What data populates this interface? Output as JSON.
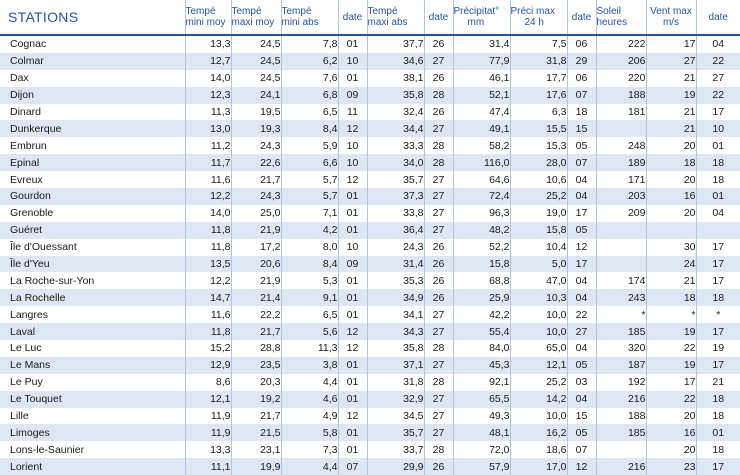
{
  "table": {
    "headers": {
      "station": "STATIONS",
      "tmoy": [
        "Tempé",
        "mini moy"
      ],
      "tmax": [
        "Tempé",
        "maxi moy"
      ],
      "tabs": [
        "Tempé",
        "mini abs"
      ],
      "date1": "date",
      "tmaxabs": [
        "Tempé",
        "maxi abs"
      ],
      "date2": "date",
      "precip": [
        "Précipitat°",
        "mm"
      ],
      "pmax": [
        "Préci max",
        "24 h"
      ],
      "date3": "date",
      "sun": [
        "Soleil",
        "heures"
      ],
      "wind": [
        "Vent max",
        "m/s"
      ],
      "date4": "date"
    },
    "rows": [
      [
        "Cognac",
        "13,3",
        "24,5",
        "7,8",
        "01",
        "37,7",
        "26",
        "31,4",
        "7,5",
        "06",
        "222",
        "17",
        "04"
      ],
      [
        "Colmar",
        "12,7",
        "24,5",
        "6,2",
        "10",
        "34,6",
        "27",
        "77,9",
        "31,8",
        "29",
        "206",
        "27",
        "22"
      ],
      [
        "Dax",
        "14,0",
        "24,5",
        "7,6",
        "01",
        "38,1",
        "26",
        "46,1",
        "17,7",
        "06",
        "220",
        "21",
        "27"
      ],
      [
        "Dijon",
        "12,3",
        "24,1",
        "6,8",
        "09",
        "35,8",
        "28",
        "52,1",
        "17,6",
        "07",
        "188",
        "19",
        "22"
      ],
      [
        "Dinard",
        "11,3",
        "19,5",
        "6,5",
        "11",
        "32,4",
        "26",
        "47,4",
        "6,3",
        "18",
        "181",
        "21",
        "17"
      ],
      [
        "Dunkerque",
        "13,0",
        "19,3",
        "8,4",
        "12",
        "34,4",
        "27",
        "49,1",
        "15,5",
        "15",
        "",
        "21",
        "10"
      ],
      [
        "Embrun",
        "11,2",
        "24,3",
        "5,9",
        "10",
        "33,3",
        "28",
        "58,2",
        "15,3",
        "05",
        "248",
        "20",
        "01"
      ],
      [
        "Epinal",
        "11,7",
        "22,6",
        "6,6",
        "10",
        "34,0",
        "28",
        "116,0",
        "28,0",
        "07",
        "189",
        "18",
        "18"
      ],
      [
        "Evreux",
        "11,6",
        "21,7",
        "5,7",
        "12",
        "35,7",
        "27",
        "64,6",
        "10,6",
        "04",
        "171",
        "20",
        "18"
      ],
      [
        "Gourdon",
        "12,2",
        "24,3",
        "5,7",
        "01",
        "37,3",
        "27",
        "72,4",
        "25,2",
        "04",
        "203",
        "16",
        "01"
      ],
      [
        "Grenoble",
        "14,0",
        "25,0",
        "7,1",
        "01",
        "33,8",
        "27",
        "96,3",
        "19,0",
        "17",
        "209",
        "20",
        "04"
      ],
      [
        "Guéret",
        "11,8",
        "21,9",
        "4,2",
        "01",
        "36,4",
        "27",
        "48,2",
        "15,8",
        "05",
        "",
        "",
        ""
      ],
      [
        "Île d'Ouessant",
        "11,8",
        "17,2",
        "8,0",
        "10",
        "24,3",
        "26",
        "52,2",
        "10,4",
        "12",
        "",
        "30",
        "17"
      ],
      [
        "Île d'Yeu",
        "13,5",
        "20,6",
        "8,4",
        "09",
        "31,4",
        "26",
        "15,8",
        "5,0",
        "17",
        "",
        "24",
        "17"
      ],
      [
        "La Roche-sur-Yon",
        "12,2",
        "21,9",
        "5,3",
        "01",
        "35,3",
        "26",
        "68,8",
        "47,0",
        "04",
        "174",
        "21",
        "17"
      ],
      [
        "La Rochelle",
        "14,7",
        "21,4",
        "9,1",
        "01",
        "34,9",
        "26",
        "25,9",
        "10,3",
        "04",
        "243",
        "18",
        "18"
      ],
      [
        "Langres",
        "11,6",
        "22,2",
        "6,5",
        "01",
        "34,1",
        "27",
        "42,2",
        "10,0",
        "22",
        "*",
        "*",
        "*"
      ],
      [
        "Laval",
        "11,8",
        "21,7",
        "5,6",
        "12",
        "34,3",
        "27",
        "55,4",
        "10,0",
        "27",
        "185",
        "19",
        "17"
      ],
      [
        "Le Luc",
        "15,2",
        "28,8",
        "11,3",
        "12",
        "35,8",
        "28",
        "84,0",
        "65,0",
        "04",
        "320",
        "22",
        "19"
      ],
      [
        "Le Mans",
        "12,9",
        "23,5",
        "3,8",
        "01",
        "37,1",
        "27",
        "45,3",
        "12,1",
        "05",
        "187",
        "19",
        "17"
      ],
      [
        "Le Puy",
        "8,6",
        "20,3",
        "4,4",
        "01",
        "31,8",
        "28",
        "92,1",
        "25,2",
        "03",
        "192",
        "17",
        "21"
      ],
      [
        "Le Touquet",
        "12,1",
        "19,2",
        "4,6",
        "01",
        "32,9",
        "27",
        "65,5",
        "14,2",
        "04",
        "216",
        "22",
        "18"
      ],
      [
        "Lille",
        "11,9",
        "21,7",
        "4,9",
        "12",
        "34,5",
        "27",
        "49,3",
        "10,0",
        "15",
        "188",
        "20",
        "18"
      ],
      [
        "Limoges",
        "11,9",
        "21,5",
        "5,8",
        "01",
        "35,7",
        "27",
        "48,1",
        "16,2",
        "05",
        "185",
        "16",
        "01"
      ],
      [
        "Lons-le-Saunier",
        "13,3",
        "23,1",
        "7,3",
        "01",
        "33,7",
        "28",
        "72,0",
        "18,6",
        "07",
        "",
        "20",
        "18"
      ],
      [
        "Lorient",
        "11,1",
        "19,9",
        "4,4",
        "07",
        "29,9",
        "26",
        "57,9",
        "17,0",
        "12",
        "216",
        "23",
        "17"
      ]
    ]
  }
}
